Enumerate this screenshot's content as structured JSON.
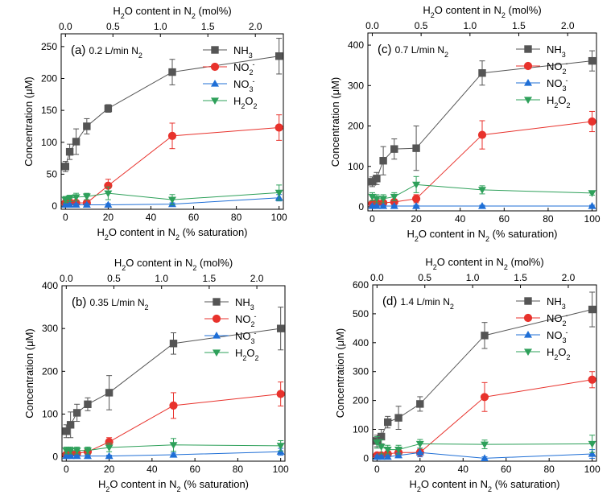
{
  "colors": {
    "NH3": "#555555",
    "NO2": "#e8322c",
    "NO3": "#1f6fd6",
    "H2O2": "#2ea05a"
  },
  "chart_data": [
    {
      "type": "scatter",
      "panel": "(a)",
      "annotation": {
        "prefix": "(a) ",
        "flow": "0.2 L/min N",
        "sub": "2"
      },
      "xlabel": {
        "main": "H",
        "sub1": "2",
        "mid": "O content in N",
        "sub2": "2",
        "tail": " (% saturation)"
      },
      "ylabel": "Concentration (μM)",
      "top_xlabel": {
        "main": "H",
        "sub1": "2",
        "mid": "O content in N",
        "sub2": "2",
        "tail": " (mol%)"
      },
      "xlim": [
        -2,
        102
      ],
      "ylim": [
        -5,
        270
      ],
      "xticks": [
        0,
        20,
        40,
        60,
        80,
        100
      ],
      "yticks": [
        0,
        50,
        100,
        150,
        200,
        250
      ],
      "top_ticks": [
        0.0,
        0.5,
        1.0,
        1.5,
        2.0
      ],
      "top_tick_labels": [
        "0.0",
        "0.5",
        "1.0",
        "1.5",
        "2.0"
      ],
      "top_scale": 2.25,
      "legend_position": "top-right",
      "series": [
        {
          "key": "NH3",
          "name": "NH",
          "sub": "3",
          "sup": "",
          "marker": "square",
          "x": [
            0,
            2,
            5,
            10,
            20,
            50,
            100
          ],
          "y": [
            62,
            85,
            101,
            125,
            153,
            210,
            235
          ],
          "err": [
            8,
            12,
            20,
            12,
            6,
            20,
            28
          ]
        },
        {
          "key": "NO2",
          "name": "NO",
          "sub": "2",
          "sup": "-",
          "marker": "circle",
          "x": [
            0,
            2,
            5,
            10,
            20,
            50,
            100
          ],
          "y": [
            5,
            6,
            5,
            5,
            32,
            110,
            123
          ],
          "err": [
            3,
            3,
            3,
            3,
            10,
            20,
            20
          ]
        },
        {
          "key": "NO3",
          "name": "NO",
          "sub": "3",
          "sup": "-",
          "marker": "triangle-up",
          "x": [
            0,
            2,
            5,
            10,
            20,
            50,
            100
          ],
          "y": [
            2,
            2,
            2,
            2,
            2,
            3,
            13
          ],
          "err": [
            2,
            2,
            2,
            2,
            2,
            2,
            5
          ]
        },
        {
          "key": "H2O2",
          "name": "H",
          "sub": "2",
          "sup": "",
          "name2": "O",
          "sub2": "2",
          "marker": "triangle-down",
          "x": [
            0,
            2,
            5,
            10,
            20,
            50,
            100
          ],
          "y": [
            10,
            12,
            14,
            15,
            20,
            10,
            21
          ],
          "err": [
            5,
            5,
            6,
            5,
            10,
            8,
            12
          ]
        }
      ]
    },
    {
      "type": "scatter",
      "panel": "(c)",
      "annotation": {
        "prefix": "(c) ",
        "flow": "0.7 L/min N",
        "sub": "2"
      },
      "xlabel": {
        "main": "H",
        "sub1": "2",
        "mid": "O content in N",
        "sub2": "2",
        "tail": " (% saturation)"
      },
      "ylabel": "Concentration (μM)",
      "top_xlabel": {
        "main": "H",
        "sub1": "2",
        "mid": "O content in N",
        "sub2": "2",
        "tail": " (mol%)"
      },
      "xlim": [
        -2,
        102
      ],
      "ylim": [
        -10,
        430
      ],
      "xticks": [
        0,
        20,
        40,
        60,
        80,
        100
      ],
      "yticks": [
        0,
        100,
        200,
        300,
        400
      ],
      "top_ticks": [
        0.0,
        0.5,
        1.0,
        1.5,
        2.0
      ],
      "top_tick_labels": [
        "0.0",
        "0.5",
        "1.0",
        "1.5",
        "2.0"
      ],
      "top_scale": 2.25,
      "legend_position": "top-right",
      "series": [
        {
          "key": "NH3",
          "name": "NH",
          "sub": "3",
          "sup": "",
          "marker": "square",
          "x": [
            0,
            2,
            5,
            10,
            20,
            50,
            100
          ],
          "y": [
            62,
            70,
            114,
            143,
            145,
            331,
            361
          ],
          "err": [
            12,
            15,
            35,
            25,
            55,
            30,
            25
          ]
        },
        {
          "key": "NO2",
          "name": "NO",
          "sub": "2",
          "sup": "-",
          "marker": "circle",
          "x": [
            0,
            2,
            5,
            10,
            20,
            50,
            100
          ],
          "y": [
            8,
            10,
            10,
            12,
            20,
            178,
            211
          ],
          "err": [
            5,
            5,
            5,
            5,
            10,
            35,
            25
          ]
        },
        {
          "key": "NO3",
          "name": "NO",
          "sub": "3",
          "sup": "-",
          "marker": "triangle-up",
          "x": [
            0,
            2,
            5,
            10,
            20,
            50,
            100
          ],
          "y": [
            2,
            2,
            2,
            2,
            2,
            2,
            2
          ],
          "err": [
            2,
            2,
            2,
            2,
            2,
            2,
            2
          ]
        },
        {
          "key": "H2O2",
          "name": "H",
          "sub": "2",
          "sup": "",
          "name2": "O",
          "sub2": "2",
          "marker": "triangle-down",
          "x": [
            0,
            2,
            5,
            10,
            20,
            50,
            100
          ],
          "y": [
            25,
            20,
            20,
            25,
            55,
            42,
            34
          ],
          "err": [
            10,
            10,
            10,
            10,
            20,
            10,
            5
          ]
        }
      ]
    },
    {
      "type": "scatter",
      "panel": "(b)",
      "annotation": {
        "prefix": "(b) ",
        "flow": "0.35 L/min N",
        "sub": "2"
      },
      "xlabel": {
        "main": "H",
        "sub1": "2",
        "mid": "O content in N",
        "sub2": "2",
        "tail": " (% saturation)"
      },
      "ylabel": "Concentration (μM)",
      "top_xlabel": {
        "main": "H",
        "sub1": "2",
        "mid": "O content in N",
        "sub2": "2",
        "tail": " (mol%)"
      },
      "xlim": [
        -2,
        102
      ],
      "ylim": [
        -10,
        400
      ],
      "xticks": [
        0,
        20,
        40,
        60,
        80,
        100
      ],
      "yticks": [
        0,
        100,
        200,
        300,
        400
      ],
      "top_ticks": [
        0.0,
        0.5,
        1.0,
        1.5,
        2.0
      ],
      "top_tick_labels": [
        "0.0",
        "0.5",
        "1.0",
        "1.5",
        "2.0"
      ],
      "top_scale": 2.25,
      "legend_position": "top-right",
      "series": [
        {
          "key": "NH3",
          "name": "NH",
          "sub": "3",
          "sup": "",
          "marker": "square",
          "x": [
            0,
            2,
            5,
            10,
            20,
            50,
            100
          ],
          "y": [
            60,
            75,
            103,
            123,
            150,
            265,
            300
          ],
          "err": [
            15,
            30,
            20,
            15,
            40,
            25,
            50
          ]
        },
        {
          "key": "NO2",
          "name": "NO",
          "sub": "2",
          "sup": "-",
          "marker": "circle",
          "x": [
            0,
            2,
            5,
            10,
            20,
            50,
            100
          ],
          "y": [
            5,
            8,
            8,
            12,
            35,
            120,
            147
          ],
          "err": [
            4,
            5,
            5,
            8,
            10,
            30,
            28
          ]
        },
        {
          "key": "NO3",
          "name": "NO",
          "sub": "3",
          "sup": "-",
          "marker": "triangle-up",
          "x": [
            0,
            2,
            5,
            10,
            20,
            50,
            100
          ],
          "y": [
            2,
            2,
            2,
            2,
            2,
            5,
            12
          ],
          "err": [
            2,
            2,
            2,
            2,
            2,
            4,
            8
          ]
        },
        {
          "key": "H2O2",
          "name": "H",
          "sub": "2",
          "sup": "",
          "name2": "O",
          "sub2": "2",
          "marker": "triangle-down",
          "x": [
            0,
            2,
            5,
            10,
            20,
            50,
            100
          ],
          "y": [
            15,
            15,
            15,
            15,
            22,
            28,
            26
          ],
          "err": [
            8,
            8,
            8,
            8,
            10,
            15,
            12
          ]
        }
      ]
    },
    {
      "type": "scatter",
      "panel": "(d)",
      "annotation": {
        "prefix": "(d) ",
        "flow": "1.4 L/min N",
        "sub": "2"
      },
      "xlabel": {
        "main": "H",
        "sub1": "2",
        "mid": "O content in N",
        "sub2": "2",
        "tail": " (% saturation)"
      },
      "ylabel": "Concentration (μM)",
      "top_xlabel": {
        "main": "H",
        "sub1": "2",
        "mid": "O content in N",
        "sub2": "2",
        "tail": " (mol%)"
      },
      "xlim": [
        -2,
        102
      ],
      "ylim": [
        -10,
        600
      ],
      "xticks": [
        0,
        20,
        40,
        60,
        80,
        100
      ],
      "yticks": [
        0,
        100,
        200,
        300,
        400,
        500,
        600
      ],
      "top_ticks": [
        0.0,
        0.5,
        1.0,
        1.5,
        2.0
      ],
      "top_tick_labels": [
        "0.0",
        "0.5",
        "1.0",
        "1.5",
        "2.0"
      ],
      "top_scale": 2.25,
      "legend_position": "top-right",
      "series": [
        {
          "key": "NH3",
          "name": "NH",
          "sub": "3",
          "sup": "",
          "marker": "square",
          "x": [
            0,
            2,
            5,
            10,
            20,
            50,
            100
          ],
          "y": [
            60,
            75,
            125,
            140,
            188,
            425,
            515
          ],
          "err": [
            20,
            25,
            20,
            40,
            25,
            45,
            60
          ]
        },
        {
          "key": "NO2",
          "name": "NO",
          "sub": "2",
          "sup": "-",
          "marker": "circle",
          "x": [
            0,
            2,
            5,
            10,
            20,
            50,
            100
          ],
          "y": [
            10,
            10,
            15,
            20,
            20,
            212,
            272
          ],
          "err": [
            8,
            8,
            10,
            10,
            10,
            50,
            28
          ]
        },
        {
          "key": "NO3",
          "name": "NO",
          "sub": "3",
          "sup": "-",
          "marker": "triangle-up",
          "x": [
            0,
            2,
            5,
            10,
            20,
            50,
            100
          ],
          "y": [
            5,
            5,
            5,
            10,
            20,
            0,
            15
          ],
          "err": [
            5,
            5,
            5,
            8,
            15,
            5,
            15
          ]
        },
        {
          "key": "H2O2",
          "name": "H",
          "sub": "2",
          "sup": "",
          "name2": "O",
          "sub2": "2",
          "marker": "triangle-down",
          "x": [
            0,
            2,
            5,
            10,
            20,
            50,
            100
          ],
          "y": [
            55,
            40,
            30,
            30,
            50,
            48,
            50
          ],
          "err": [
            20,
            25,
            15,
            15,
            15,
            15,
            30
          ]
        }
      ]
    }
  ]
}
